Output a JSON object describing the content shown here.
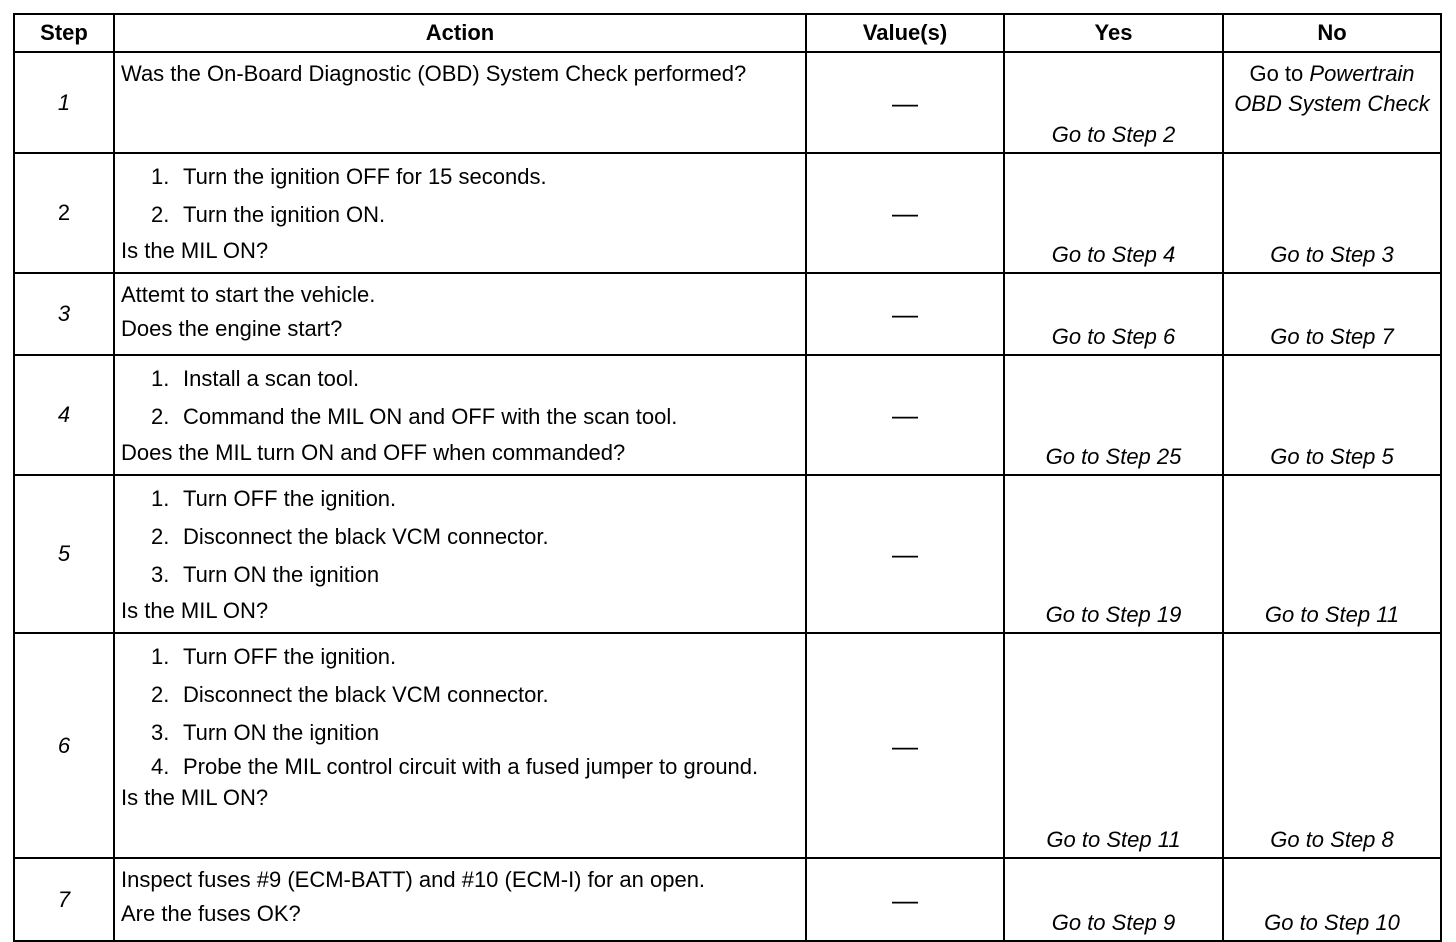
{
  "headers": [
    "Step",
    "Action",
    "Value(s)",
    "Yes",
    "No"
  ],
  "rows": [
    {
      "step": "1",
      "pre": [
        "Was the On-Board Diagnostic (OBD) System Check performed?"
      ],
      "items": [],
      "question": "",
      "value": "—",
      "yes": "Go to Step 2",
      "no_prefix": "Go to",
      "no": "Powertrain OBD System Check"
    },
    {
      "step": "2",
      "pre": [],
      "items": [
        "Turn the ignition OFF for 15 seconds.",
        "Turn the ignition ON."
      ],
      "question": "Is the MIL ON?",
      "value": "—",
      "yes": "Go to Step 4",
      "no": "Go to Step 3"
    },
    {
      "step": "3",
      "pre": [
        "Attemt to start the vehicle."
      ],
      "items": [],
      "question": "Does the engine start?",
      "value": "—",
      "yes": "Go to Step 6",
      "no": "Go to Step 7"
    },
    {
      "step": "4",
      "pre": [],
      "items": [
        "Install a scan tool.",
        "Command the MIL ON and OFF with the scan tool."
      ],
      "question": "Does the MIL turn ON and OFF when commanded?",
      "value": "—",
      "yes": "Go to Step 25",
      "no": "Go to Step 5"
    },
    {
      "step": "5",
      "pre": [],
      "items": [
        "Turn OFF the ignition.",
        "Disconnect the black VCM connector.",
        "Turn ON the ignition"
      ],
      "question": "Is the MIL ON?",
      "value": "—",
      "yes": "Go to Step 19",
      "no": "Go to Step 11"
    },
    {
      "step": "6",
      "pre": [],
      "items": [
        "Turn OFF the ignition.",
        "Disconnect the black VCM connector.",
        "Turn ON the ignition",
        "Probe the MIL control circuit with a fused jumper to ground."
      ],
      "question": "Is the MIL ON?",
      "value": "—",
      "yes": "Go to Step 11",
      "no": "Go to Step 8"
    },
    {
      "step": "7",
      "pre": [
        "Inspect fuses #9 (ECM-BATT) and #10 (ECM-I) for an open."
      ],
      "items": [],
      "question": "Are the fuses OK?",
      "value": "—",
      "yes": "Go to Step 9",
      "no": "Go to Step 10"
    }
  ]
}
